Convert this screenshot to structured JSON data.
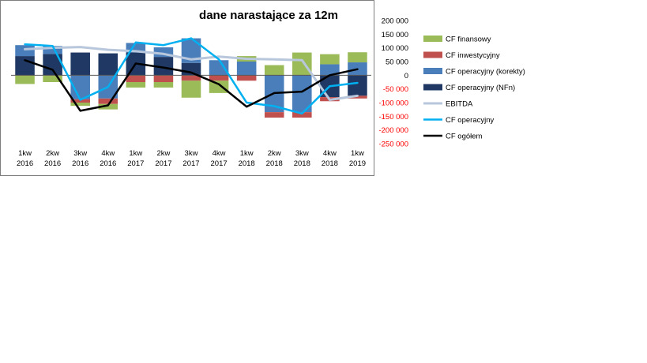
{
  "chart_data": {
    "type": "bar",
    "title": "dane narastające za 12m",
    "xlabel": "",
    "ylabel": "",
    "ylim": [
      -250000,
      200000
    ],
    "yticks": [
      200000,
      150000,
      100000,
      50000,
      0,
      -50000,
      -100000,
      -150000,
      -200000,
      -250000
    ],
    "ytick_labels": [
      "200 000",
      "150 000",
      "100 000",
      "50 000",
      "0",
      "-50 000",
      "-100 000",
      "-150 000",
      "-200 000",
      "-250 000"
    ],
    "categories": [
      [
        "1kw",
        "2016"
      ],
      [
        "2kw",
        "2016"
      ],
      [
        "3kw",
        "2016"
      ],
      [
        "4kw",
        "2016"
      ],
      [
        "1kw",
        "2017"
      ],
      [
        "2kw",
        "2017"
      ],
      [
        "3kw",
        "2017"
      ],
      [
        "4kw",
        "2017"
      ],
      [
        "1kw",
        "2018"
      ],
      [
        "2kw",
        "2018"
      ],
      [
        "3kw",
        "2018"
      ],
      [
        "4kw",
        "2018"
      ],
      [
        "1kw",
        "2019"
      ]
    ],
    "stacking": "positive and negative values stacked separately from zero",
    "legend_position": "right",
    "series": [
      {
        "name": "CF operacyjny (NFn)",
        "kind": "bar",
        "color": "#1f3864",
        "values": [
          70000,
          78000,
          83000,
          80000,
          83000,
          67000,
          45000,
          0,
          0,
          0,
          0,
          -80000,
          -75000
        ]
      },
      {
        "name": "CF operacyjny (korekty)",
        "kind": "bar",
        "color": "#4a7ebb",
        "values": [
          40000,
          29000,
          -88000,
          -85000,
          35000,
          35000,
          90000,
          55000,
          50000,
          -135000,
          -135000,
          40000,
          47000
        ]
      },
      {
        "name": "CF inwestycyjny",
        "kind": "bar",
        "color": "#c0504d",
        "values": [
          0,
          0,
          -12000,
          -20000,
          -25000,
          -25000,
          -20000,
          -20000,
          -20000,
          -20000,
          -20000,
          -15000,
          -10000
        ]
      },
      {
        "name": "CF finansowy",
        "kind": "bar",
        "color": "#9bbb59",
        "values": [
          -32000,
          -25000,
          -12000,
          -20000,
          -20000,
          -20000,
          -62000,
          -45000,
          20000,
          37000,
          83000,
          37000,
          37000
        ]
      },
      {
        "name": "EBITDA",
        "kind": "line",
        "color": "#b8c7dc",
        "values": [
          95000,
          100000,
          103000,
          93000,
          88000,
          78000,
          58000,
          68000,
          60000,
          58000,
          55000,
          -90000,
          -75000
        ]
      },
      {
        "name": "CF operacyjny",
        "kind": "line",
        "color": "#00b0f0",
        "values": [
          113000,
          107000,
          -90000,
          -43000,
          120000,
          110000,
          135000,
          58000,
          -100000,
          -113000,
          -140000,
          -40000,
          -28000
        ]
      },
      {
        "name": "CF ogółem",
        "kind": "line",
        "color": "#000000",
        "values": [
          55000,
          20000,
          -130000,
          -110000,
          43000,
          28000,
          10000,
          -33000,
          -115000,
          -65000,
          -60000,
          0,
          22000
        ]
      }
    ],
    "legend_order": [
      "CF finansowy",
      "CF inwestycyjny",
      "CF operacyjny (korekty)",
      "CF operacyjny (NFn)",
      "EBITDA",
      "CF operacyjny",
      "CF ogółem"
    ]
  }
}
